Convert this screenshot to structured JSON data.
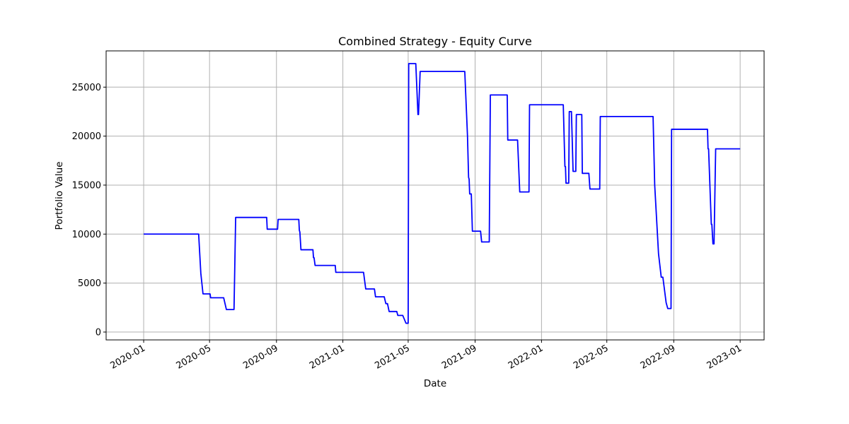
{
  "chart_data": {
    "type": "line",
    "title": "Combined Strategy - Equity Curve",
    "xlabel": "Date",
    "ylabel": "Portfolio Value",
    "grid": true,
    "ylim": [
      -800,
      28700
    ],
    "xlim": [
      "2019-10-24",
      "2023-02-14"
    ],
    "x_ticks": [
      "2020-01",
      "2020-05",
      "2020-09",
      "2021-01",
      "2021-05",
      "2021-09",
      "2022-01",
      "2022-05",
      "2022-09",
      "2023-01"
    ],
    "y_ticks": [
      "0",
      "5000",
      "10000",
      "15000",
      "20000",
      "25000"
    ],
    "series": [
      {
        "color": "#0000ff",
        "points": [
          [
            "2020-01-01",
            10000
          ],
          [
            "2020-04-11",
            10000
          ],
          [
            "2020-04-15",
            6000
          ],
          [
            "2020-04-19",
            3900
          ],
          [
            "2020-05-02",
            3900
          ],
          [
            "2020-05-03",
            3500
          ],
          [
            "2020-05-27",
            3500
          ],
          [
            "2020-06-01",
            2300
          ],
          [
            "2020-06-15",
            2300
          ],
          [
            "2020-06-18",
            11700
          ],
          [
            "2020-08-14",
            11700
          ],
          [
            "2020-08-15",
            10500
          ],
          [
            "2020-09-03",
            10500
          ],
          [
            "2020-09-04",
            11500
          ],
          [
            "2020-10-12",
            11500
          ],
          [
            "2020-10-13",
            10400
          ],
          [
            "2020-10-14",
            10200
          ],
          [
            "2020-10-16",
            8400
          ],
          [
            "2020-11-07",
            8400
          ],
          [
            "2020-11-08",
            7600
          ],
          [
            "2020-11-09",
            7600
          ],
          [
            "2020-11-11",
            6800
          ],
          [
            "2020-12-18",
            6800
          ],
          [
            "2020-12-19",
            6100
          ],
          [
            "2021-02-08",
            6100
          ],
          [
            "2021-02-12",
            4400
          ],
          [
            "2021-02-28",
            4400
          ],
          [
            "2021-03-02",
            3600
          ],
          [
            "2021-03-18",
            3600
          ],
          [
            "2021-03-21",
            2900
          ],
          [
            "2021-03-24",
            2900
          ],
          [
            "2021-03-27",
            2100
          ],
          [
            "2021-04-10",
            2100
          ],
          [
            "2021-04-12",
            1700
          ],
          [
            "2021-04-21",
            1700
          ],
          [
            "2021-04-27",
            900
          ],
          [
            "2021-05-01",
            900
          ],
          [
            "2021-05-02",
            27400
          ],
          [
            "2021-05-15",
            27400
          ],
          [
            "2021-05-19",
            22200
          ],
          [
            "2021-05-20",
            22200
          ],
          [
            "2021-05-23",
            26600
          ],
          [
            "2021-08-13",
            26600
          ],
          [
            "2021-08-18",
            20000
          ],
          [
            "2021-08-20",
            15800
          ],
          [
            "2021-08-21",
            15600
          ],
          [
            "2021-08-22",
            14100
          ],
          [
            "2021-08-25",
            14100
          ],
          [
            "2021-08-27",
            10300
          ],
          [
            "2021-09-11",
            10300
          ],
          [
            "2021-09-13",
            9200
          ],
          [
            "2021-09-27",
            9200
          ],
          [
            "2021-09-29",
            24200
          ],
          [
            "2021-10-30",
            24200
          ],
          [
            "2021-10-31",
            19600
          ],
          [
            "2021-11-18",
            19600
          ],
          [
            "2021-11-22",
            14300
          ],
          [
            "2021-12-09",
            14300
          ],
          [
            "2021-12-10",
            23200
          ],
          [
            "2022-02-10",
            23200
          ],
          [
            "2022-02-13",
            16900
          ],
          [
            "2022-02-14",
            16900
          ],
          [
            "2022-02-15",
            15200
          ],
          [
            "2022-02-20",
            15200
          ],
          [
            "2022-02-21",
            22500
          ],
          [
            "2022-02-25",
            22500
          ],
          [
            "2022-02-28",
            16400
          ],
          [
            "2022-03-05",
            16400
          ],
          [
            "2022-03-06",
            22200
          ],
          [
            "2022-03-16",
            22200
          ],
          [
            "2022-03-17",
            16200
          ],
          [
            "2022-03-29",
            16200
          ],
          [
            "2022-03-31",
            14600
          ],
          [
            "2022-04-18",
            14600
          ],
          [
            "2022-04-19",
            22000
          ],
          [
            "2022-07-25",
            22000
          ],
          [
            "2022-07-28",
            15000
          ],
          [
            "2022-08-04",
            8000
          ],
          [
            "2022-08-09",
            5600
          ],
          [
            "2022-08-12",
            5600
          ],
          [
            "2022-08-18",
            3000
          ],
          [
            "2022-08-21",
            2400
          ],
          [
            "2022-08-27",
            2400
          ],
          [
            "2022-08-28",
            20700
          ],
          [
            "2022-11-02",
            20700
          ],
          [
            "2022-11-03",
            18700
          ],
          [
            "2022-11-04",
            18700
          ],
          [
            "2022-11-09",
            11000
          ],
          [
            "2022-11-10",
            11000
          ],
          [
            "2022-11-12",
            9000
          ],
          [
            "2022-11-14",
            9000
          ],
          [
            "2022-11-17",
            18700
          ],
          [
            "2023-01-01",
            18700
          ]
        ]
      }
    ]
  }
}
